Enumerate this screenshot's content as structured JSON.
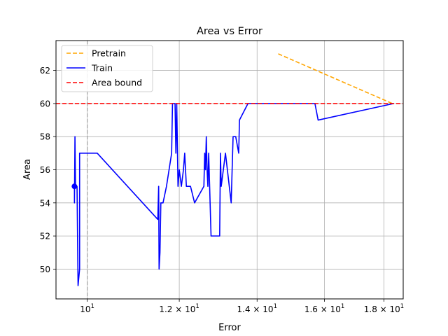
{
  "chart_data": {
    "type": "line",
    "title": "Area vs Error",
    "xlabel": "Error",
    "ylabel": "Area",
    "xscale": "log",
    "xlim": [
      9.4,
      18.7
    ],
    "ylim": [
      48.2,
      63.8
    ],
    "grid": true,
    "legend_position": "top-left",
    "x_ticks": [
      {
        "value": 10,
        "base": "10",
        "exp": "1"
      },
      {
        "value": 12,
        "base": "1.2 × 10",
        "exp": "1"
      },
      {
        "value": 14,
        "base": "1.4 × 10",
        "exp": "1"
      },
      {
        "value": 16,
        "base": "1.6 × 10",
        "exp": "1"
      },
      {
        "value": 18,
        "base": "1.8 × 10",
        "exp": "1"
      }
    ],
    "y_ticks": [
      50,
      52,
      54,
      56,
      58,
      60,
      62
    ],
    "vline": {
      "x": 10,
      "color": "#a0a0a0",
      "style": "dashed"
    },
    "series": [
      {
        "name": "Pretrain",
        "color": "#ffa500",
        "style": "dashed",
        "points": [
          [
            14.6,
            63
          ],
          [
            18.3,
            60
          ]
        ]
      },
      {
        "name": "Train",
        "color": "#0000ff",
        "style": "solid",
        "marker_point": [
          9.75,
          55
        ],
        "points": [
          [
            9.75,
            55
          ],
          [
            9.75,
            54
          ],
          [
            9.76,
            58
          ],
          [
            9.77,
            55
          ],
          [
            9.8,
            55
          ],
          [
            9.82,
            49
          ],
          [
            9.85,
            50
          ],
          [
            9.85,
            57
          ],
          [
            10.2,
            57
          ],
          [
            11.5,
            53
          ],
          [
            11.52,
            55
          ],
          [
            11.53,
            50
          ],
          [
            11.55,
            51
          ],
          [
            11.57,
            54
          ],
          [
            11.62,
            54
          ],
          [
            11.7,
            55
          ],
          [
            11.82,
            57
          ],
          [
            11.84,
            60
          ],
          [
            11.9,
            60
          ],
          [
            11.92,
            57
          ],
          [
            11.94,
            60
          ],
          [
            11.97,
            55
          ],
          [
            12.0,
            56
          ],
          [
            12.05,
            55
          ],
          [
            12.1,
            56
          ],
          [
            12.13,
            57
          ],
          [
            12.17,
            55
          ],
          [
            12.27,
            55
          ],
          [
            12.37,
            54
          ],
          [
            12.6,
            55
          ],
          [
            12.62,
            57
          ],
          [
            12.64,
            56
          ],
          [
            12.66,
            58
          ],
          [
            12.68,
            56
          ],
          [
            12.7,
            55
          ],
          [
            12.72,
            57
          ],
          [
            12.78,
            52
          ],
          [
            13.0,
            52
          ],
          [
            13.02,
            57
          ],
          [
            13.04,
            55
          ],
          [
            13.15,
            57
          ],
          [
            13.3,
            54
          ],
          [
            13.35,
            58
          ],
          [
            13.42,
            58
          ],
          [
            13.5,
            57
          ],
          [
            13.52,
            59
          ],
          [
            13.75,
            60
          ],
          [
            15.7,
            60
          ],
          [
            15.8,
            59
          ],
          [
            18.35,
            60
          ]
        ]
      },
      {
        "name": "Area bound",
        "color": "#ff0000",
        "style": "dashed",
        "hline": 60
      }
    ]
  }
}
